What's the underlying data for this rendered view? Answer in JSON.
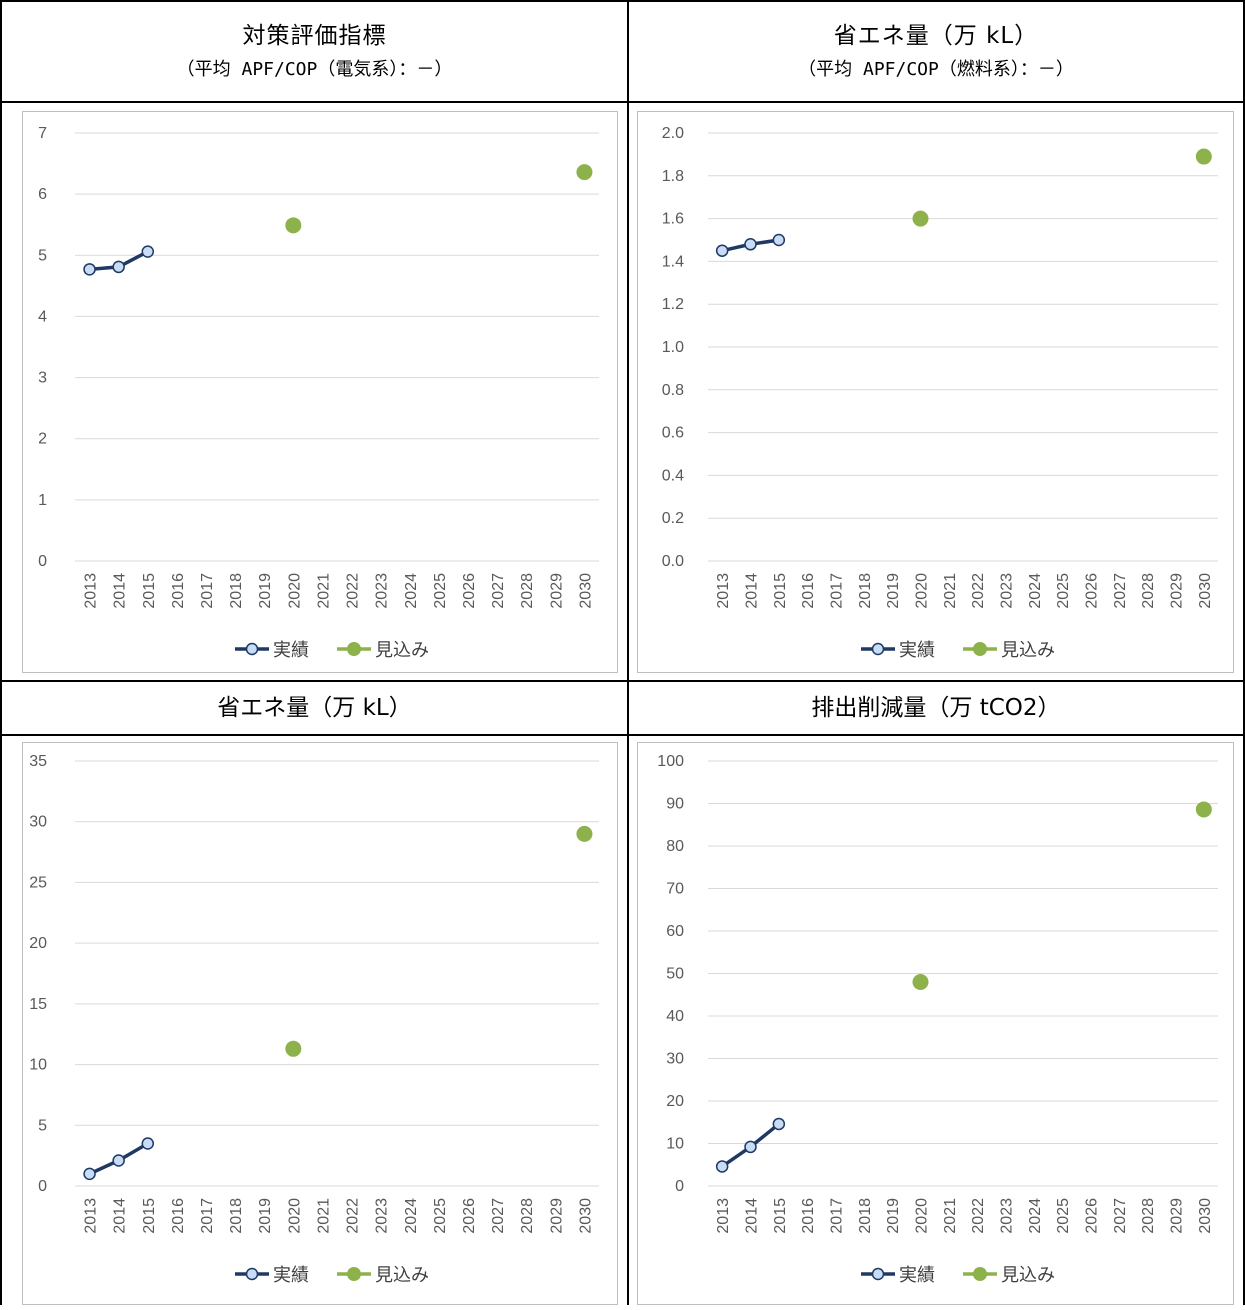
{
  "panels": [
    {
      "title": "対策評価指標",
      "subtitle": "（平均 APF/COP（電気系）：－）"
    },
    {
      "title": "省エネ量（万 kL）",
      "subtitle": "（平均 APF/COP（燃料系）：－）"
    },
    {
      "title": "省エネ量（万 kL）"
    },
    {
      "title": "排出削減量（万 tCO2）"
    }
  ],
  "legend": {
    "actual": "実績",
    "forecast": "見込み"
  },
  "colors": {
    "actual": "#1f3864",
    "actual_marker": "#c9dcf5",
    "forecast": "#8db24c",
    "grid": "#d9d9d9",
    "axis_text": "#595959"
  },
  "chart_data": [
    {
      "type": "line",
      "categories": [
        "2013",
        "2014",
        "2015",
        "2016",
        "2017",
        "2018",
        "2019",
        "2020",
        "2021",
        "2022",
        "2023",
        "2024",
        "2025",
        "2026",
        "2027",
        "2028",
        "2029",
        "2030"
      ],
      "ylim": [
        0,
        7
      ],
      "ytick_step": 1,
      "ytick_decimals": 0,
      "series": [
        {
          "name": "実績",
          "points": [
            [
              "2013",
              4.77
            ],
            [
              "2014",
              4.81
            ],
            [
              "2015",
              5.06
            ]
          ]
        },
        {
          "name": "見込み",
          "points": [
            [
              "2020",
              5.49
            ],
            [
              "2030",
              6.36
            ]
          ]
        }
      ]
    },
    {
      "type": "line",
      "categories": [
        "2013",
        "2014",
        "2015",
        "2016",
        "2017",
        "2018",
        "2019",
        "2020",
        "2021",
        "2022",
        "2023",
        "2024",
        "2025",
        "2026",
        "2027",
        "2028",
        "2029",
        "2030"
      ],
      "ylim": [
        0,
        2.0
      ],
      "ytick_step": 0.2,
      "ytick_decimals": 1,
      "series": [
        {
          "name": "実績",
          "points": [
            [
              "2013",
              1.45
            ],
            [
              "2014",
              1.48
            ],
            [
              "2015",
              1.5
            ]
          ]
        },
        {
          "name": "見込み",
          "points": [
            [
              "2020",
              1.6
            ],
            [
              "2030",
              1.89
            ]
          ]
        }
      ]
    },
    {
      "type": "line",
      "categories": [
        "2013",
        "2014",
        "2015",
        "2016",
        "2017",
        "2018",
        "2019",
        "2020",
        "2021",
        "2022",
        "2023",
        "2024",
        "2025",
        "2026",
        "2027",
        "2028",
        "2029",
        "2030"
      ],
      "ylim": [
        0,
        35
      ],
      "ytick_step": 5,
      "ytick_decimals": 0,
      "series": [
        {
          "name": "実績",
          "points": [
            [
              "2013",
              1.0
            ],
            [
              "2014",
              2.1
            ],
            [
              "2015",
              3.5
            ]
          ]
        },
        {
          "name": "見込み",
          "points": [
            [
              "2020",
              11.3
            ],
            [
              "2030",
              29.0
            ]
          ]
        }
      ]
    },
    {
      "type": "line",
      "categories": [
        "2013",
        "2014",
        "2015",
        "2016",
        "2017",
        "2018",
        "2019",
        "2020",
        "2021",
        "2022",
        "2023",
        "2024",
        "2025",
        "2026",
        "2027",
        "2028",
        "2029",
        "2030"
      ],
      "ylim": [
        0,
        100
      ],
      "ytick_step": 10,
      "ytick_decimals": 0,
      "series": [
        {
          "name": "実績",
          "points": [
            [
              "2013",
              4.6
            ],
            [
              "2014",
              9.2
            ],
            [
              "2015",
              14.6
            ]
          ]
        },
        {
          "name": "見込み",
          "points": [
            [
              "2020",
              48.0
            ],
            [
              "2030",
              88.6
            ]
          ]
        }
      ]
    }
  ]
}
